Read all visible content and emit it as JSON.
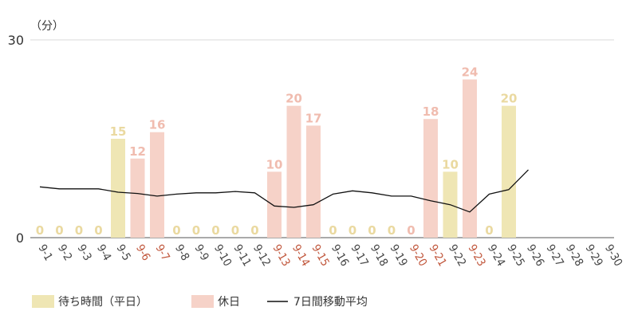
{
  "chart_data": {
    "type": "bar",
    "unit_label": "（分）",
    "y_ticks": [
      0,
      30
    ],
    "ylim": [
      0,
      30
    ],
    "grid": true,
    "categories": [
      "9-1",
      "9-2",
      "9-3",
      "9-4",
      "9-5",
      "9-6",
      "9-7",
      "9-8",
      "9-9",
      "9-10",
      "9-11",
      "9-12",
      "9-13",
      "9-14",
      "9-15",
      "9-16",
      "9-17",
      "9-18",
      "9-19",
      "9-20",
      "9-21",
      "9-22",
      "9-23",
      "9-24",
      "9-25",
      "9-26",
      "9-27",
      "9-28",
      "9-29",
      "9-30"
    ],
    "holiday_flags": [
      false,
      false,
      false,
      false,
      false,
      true,
      true,
      false,
      false,
      false,
      false,
      false,
      true,
      true,
      true,
      false,
      false,
      false,
      false,
      true,
      true,
      false,
      true,
      false,
      false,
      false,
      false,
      false,
      false,
      false
    ],
    "series": [
      {
        "name": "待ち時間（平日）",
        "color": "#efe6b4",
        "label_color": "#ead9a0",
        "values": [
          0,
          0,
          0,
          0,
          15,
          null,
          null,
          0,
          0,
          0,
          0,
          0,
          null,
          null,
          null,
          0,
          0,
          0,
          0,
          null,
          null,
          10,
          null,
          0,
          20,
          null,
          null,
          null,
          null,
          null
        ]
      },
      {
        "name": "休日",
        "color": "#f6d2c8",
        "label_color": "#f0bcaf",
        "values": [
          null,
          null,
          null,
          null,
          null,
          12,
          16,
          null,
          null,
          null,
          null,
          null,
          10,
          20,
          17,
          null,
          null,
          null,
          null,
          0,
          18,
          null,
          24,
          null,
          null,
          null,
          null,
          null,
          null,
          null
        ]
      },
      {
        "name": "7日間移動平均",
        "type": "line",
        "color": "#111111",
        "values": [
          7.7,
          7.4,
          7.4,
          7.4,
          6.9,
          6.7,
          6.3,
          6.6,
          6.8,
          6.8,
          7.0,
          6.8,
          4.8,
          4.6,
          5.0,
          6.6,
          7.1,
          6.8,
          6.3,
          6.3,
          5.6,
          5.0,
          3.9,
          6.6,
          7.3,
          10.3,
          null,
          null,
          null,
          null
        ]
      }
    ],
    "tick_colors": {
      "weekday": "#444444",
      "holiday": "#c0553a"
    },
    "legend": {
      "position": "bottom-left",
      "items": [
        {
          "label": "待ち時間（平日）",
          "kind": "bar",
          "color": "#efe6b4"
        },
        {
          "label": "休日",
          "kind": "bar",
          "color": "#f6d2c8"
        },
        {
          "label": "7日間移動平均",
          "kind": "line",
          "color": "#111111"
        }
      ]
    }
  }
}
